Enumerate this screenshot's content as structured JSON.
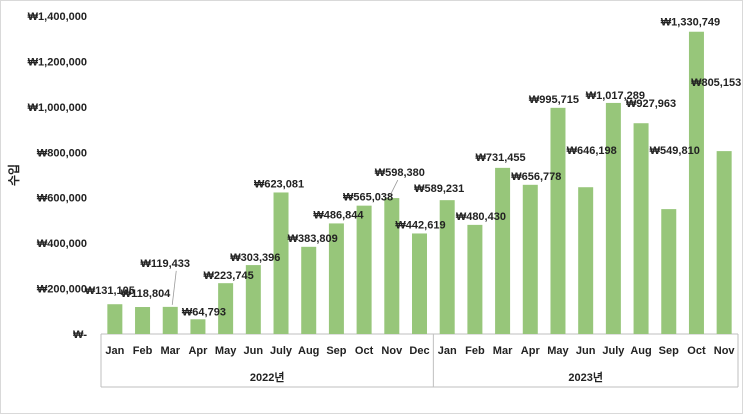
{
  "chart_data": {
    "type": "bar",
    "title": "",
    "ylabel": "수입",
    "ylim": [
      0,
      1400000
    ],
    "yticks": [
      0,
      200000,
      400000,
      600000,
      800000,
      1000000,
      1200000,
      1400000
    ],
    "ytick_labels": [
      "₩-",
      "₩200,000",
      "₩400,000",
      "₩600,000",
      "₩800,000",
      "₩1,000,000",
      "₩1,200,000",
      "₩1,400,000"
    ],
    "grid": false,
    "bar_color": "#97c67a",
    "groups": [
      {
        "label": "2022년",
        "start": 0,
        "count": 12
      },
      {
        "label": "2023년",
        "start": 12,
        "count": 11
      }
    ],
    "categories": [
      "Jan",
      "Feb",
      "Mar",
      "Apr",
      "May",
      "Jun",
      "July",
      "Aug",
      "Sep",
      "Oct",
      "Nov",
      "Dec",
      "Jan",
      "Feb",
      "Mar",
      "Apr",
      "May",
      "Jun",
      "July",
      "Aug",
      "Sep",
      "Oct",
      "Nov"
    ],
    "values": [
      131105,
      118804,
      119433,
      64793,
      223745,
      303396,
      623081,
      383809,
      486844,
      565038,
      598380,
      442619,
      589231,
      480430,
      731455,
      656778,
      995715,
      646198,
      1017289,
      927963,
      549810,
      1330749,
      805153
    ],
    "data_labels": [
      "₩131,105",
      "₩118,804",
      "₩119,433",
      "₩64,793",
      "₩223,745",
      "₩303,396",
      "₩623,081",
      "₩383,809",
      "₩486,844",
      "₩565,038",
      "₩598,380",
      "₩442,619",
      "₩589,231",
      "₩480,430",
      "₩731,455",
      "₩656,778",
      "₩995,715",
      "₩646,198",
      "₩1,017,289",
      "₩927,963",
      "₩549,810",
      "₩1,330,749",
      "₩805,153"
    ]
  }
}
